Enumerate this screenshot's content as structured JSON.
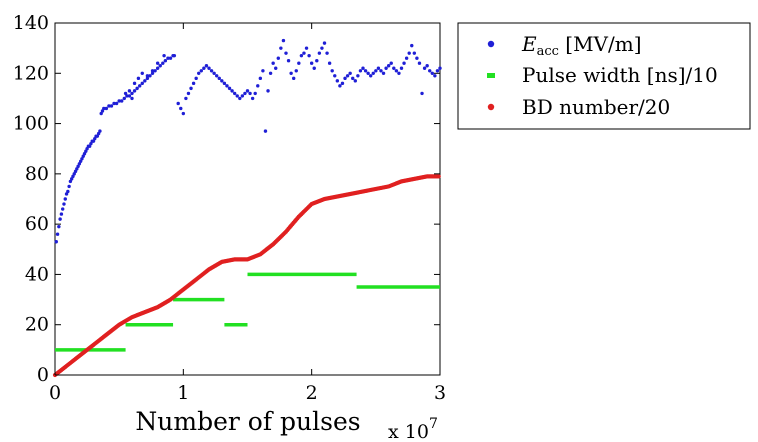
{
  "chart_data": {
    "type": "scatter",
    "xlabel": "Number of pulses",
    "x_exponent_label": "x 10",
    "x_exponent_power": "7",
    "xlim": [
      0,
      3
    ],
    "ylim": [
      0,
      140
    ],
    "x_ticks": [
      0,
      1,
      2,
      3
    ],
    "y_ticks": [
      0,
      20,
      40,
      60,
      80,
      100,
      120,
      140
    ],
    "grid": false,
    "legend_position": "top-right-outside",
    "series": [
      {
        "name": "E",
        "name_subscript": "acc",
        "name_suffix": " [MV/m]",
        "color": "#1f1fd6",
        "points": [
          [
            0.01,
            53
          ],
          [
            0.02,
            56
          ],
          [
            0.03,
            59
          ],
          [
            0.04,
            62
          ],
          [
            0.05,
            64
          ],
          [
            0.06,
            66
          ],
          [
            0.07,
            68
          ],
          [
            0.08,
            70
          ],
          [
            0.09,
            72
          ],
          [
            0.1,
            73
          ],
          [
            0.11,
            75
          ],
          [
            0.12,
            77
          ],
          [
            0.13,
            78
          ],
          [
            0.14,
            79
          ],
          [
            0.15,
            80
          ],
          [
            0.16,
            81
          ],
          [
            0.17,
            82
          ],
          [
            0.18,
            83
          ],
          [
            0.19,
            84
          ],
          [
            0.2,
            85
          ],
          [
            0.21,
            86
          ],
          [
            0.22,
            87
          ],
          [
            0.23,
            88
          ],
          [
            0.24,
            89
          ],
          [
            0.25,
            90
          ],
          [
            0.26,
            91
          ],
          [
            0.27,
            91
          ],
          [
            0.28,
            92
          ],
          [
            0.29,
            93
          ],
          [
            0.3,
            93
          ],
          [
            0.31,
            94
          ],
          [
            0.32,
            95
          ],
          [
            0.33,
            95
          ],
          [
            0.34,
            96
          ],
          [
            0.35,
            97
          ],
          [
            0.36,
            104
          ],
          [
            0.37,
            105
          ],
          [
            0.38,
            106
          ],
          [
            0.4,
            106
          ],
          [
            0.42,
            107
          ],
          [
            0.44,
            107
          ],
          [
            0.46,
            108
          ],
          [
            0.48,
            108
          ],
          [
            0.5,
            109
          ],
          [
            0.52,
            109
          ],
          [
            0.54,
            110
          ],
          [
            0.56,
            111
          ],
          [
            0.58,
            111
          ],
          [
            0.6,
            112
          ],
          [
            0.62,
            113
          ],
          [
            0.64,
            114
          ],
          [
            0.66,
            115
          ],
          [
            0.68,
            116
          ],
          [
            0.7,
            117
          ],
          [
            0.72,
            118
          ],
          [
            0.74,
            119
          ],
          [
            0.76,
            120
          ],
          [
            0.78,
            121
          ],
          [
            0.8,
            122
          ],
          [
            0.82,
            123
          ],
          [
            0.84,
            124
          ],
          [
            0.86,
            125
          ],
          [
            0.88,
            126
          ],
          [
            0.9,
            126
          ],
          [
            0.92,
            127
          ],
          [
            0.93,
            127
          ],
          [
            0.55,
            112
          ],
          [
            0.58,
            113
          ],
          [
            0.62,
            116
          ],
          [
            0.65,
            118
          ],
          [
            0.68,
            120
          ],
          [
            0.72,
            119
          ],
          [
            0.76,
            121
          ],
          [
            0.8,
            124
          ],
          [
            0.85,
            127
          ],
          [
            0.6,
            110
          ],
          [
            0.96,
            108
          ],
          [
            0.98,
            106
          ],
          [
            1.0,
            104
          ],
          [
            1.02,
            110
          ],
          [
            1.04,
            112
          ],
          [
            1.06,
            114
          ],
          [
            1.08,
            116
          ],
          [
            1.1,
            118
          ],
          [
            1.12,
            120
          ],
          [
            1.14,
            121
          ],
          [
            1.16,
            122
          ],
          [
            1.18,
            123
          ],
          [
            1.2,
            122
          ],
          [
            1.22,
            121
          ],
          [
            1.24,
            120
          ],
          [
            1.26,
            119
          ],
          [
            1.28,
            118
          ],
          [
            1.3,
            117
          ],
          [
            1.32,
            116
          ],
          [
            1.34,
            115
          ],
          [
            1.36,
            114
          ],
          [
            1.38,
            113
          ],
          [
            1.4,
            112
          ],
          [
            1.42,
            111
          ],
          [
            1.44,
            110
          ],
          [
            1.46,
            111
          ],
          [
            1.48,
            112
          ],
          [
            1.5,
            113
          ],
          [
            1.52,
            112
          ],
          [
            1.54,
            110
          ],
          [
            1.56,
            112
          ],
          [
            1.58,
            115
          ],
          [
            1.6,
            118
          ],
          [
            1.62,
            121
          ],
          [
            1.64,
            97
          ],
          [
            1.66,
            113
          ],
          [
            1.68,
            120
          ],
          [
            1.7,
            124
          ],
          [
            1.72,
            122
          ],
          [
            1.74,
            126
          ],
          [
            1.76,
            130
          ],
          [
            1.78,
            133
          ],
          [
            1.8,
            128
          ],
          [
            1.82,
            125
          ],
          [
            1.84,
            120
          ],
          [
            1.86,
            118
          ],
          [
            1.88,
            121
          ],
          [
            1.9,
            124
          ],
          [
            1.92,
            127
          ],
          [
            1.94,
            128
          ],
          [
            1.96,
            130
          ],
          [
            1.98,
            127
          ],
          [
            2.0,
            124
          ],
          [
            2.02,
            122
          ],
          [
            2.04,
            125
          ],
          [
            2.06,
            128
          ],
          [
            2.08,
            130
          ],
          [
            2.1,
            132
          ],
          [
            2.12,
            128
          ],
          [
            2.14,
            124
          ],
          [
            2.16,
            121
          ],
          [
            2.18,
            119
          ],
          [
            2.2,
            117
          ],
          [
            2.22,
            115
          ],
          [
            2.24,
            116
          ],
          [
            2.26,
            118
          ],
          [
            2.28,
            119
          ],
          [
            2.3,
            120
          ],
          [
            2.32,
            118
          ],
          [
            2.34,
            117
          ],
          [
            2.36,
            119
          ],
          [
            2.38,
            121
          ],
          [
            2.4,
            122
          ],
          [
            2.42,
            121
          ],
          [
            2.44,
            120
          ],
          [
            2.46,
            119
          ],
          [
            2.48,
            120
          ],
          [
            2.5,
            121
          ],
          [
            2.52,
            122
          ],
          [
            2.54,
            121
          ],
          [
            2.56,
            120
          ],
          [
            2.58,
            122
          ],
          [
            2.6,
            123
          ],
          [
            2.62,
            124
          ],
          [
            2.64,
            122
          ],
          [
            2.66,
            121
          ],
          [
            2.68,
            120
          ],
          [
            2.7,
            122
          ],
          [
            2.72,
            124
          ],
          [
            2.74,
            126
          ],
          [
            2.76,
            128
          ],
          [
            2.78,
            131
          ],
          [
            2.8,
            128
          ],
          [
            2.82,
            126
          ],
          [
            2.84,
            124
          ],
          [
            2.86,
            112
          ],
          [
            2.88,
            122
          ],
          [
            2.9,
            123
          ],
          [
            2.92,
            121
          ],
          [
            2.94,
            120
          ],
          [
            2.96,
            119
          ],
          [
            2.98,
            121
          ],
          [
            3.0,
            122
          ]
        ]
      },
      {
        "name": "Pulse width [ns]/10",
        "color": "#22e022",
        "segments": [
          [
            0.0,
            0.55,
            10
          ],
          [
            0.55,
            0.92,
            20
          ],
          [
            0.92,
            1.32,
            30
          ],
          [
            1.32,
            1.5,
            20
          ],
          [
            1.5,
            2.35,
            40
          ],
          [
            2.35,
            3.0,
            35
          ]
        ]
      },
      {
        "name": "BD number/20",
        "color": "#e02020",
        "curve": [
          [
            0.0,
            0
          ],
          [
            0.1,
            4
          ],
          [
            0.2,
            8
          ],
          [
            0.3,
            12
          ],
          [
            0.4,
            16
          ],
          [
            0.5,
            20
          ],
          [
            0.6,
            23
          ],
          [
            0.7,
            25
          ],
          [
            0.8,
            27
          ],
          [
            0.9,
            30
          ],
          [
            1.0,
            34
          ],
          [
            1.1,
            38
          ],
          [
            1.2,
            42
          ],
          [
            1.3,
            45
          ],
          [
            1.4,
            46
          ],
          [
            1.5,
            46
          ],
          [
            1.6,
            48
          ],
          [
            1.7,
            52
          ],
          [
            1.8,
            57
          ],
          [
            1.9,
            63
          ],
          [
            2.0,
            68
          ],
          [
            2.1,
            70
          ],
          [
            2.2,
            71
          ],
          [
            2.3,
            72
          ],
          [
            2.4,
            73
          ],
          [
            2.5,
            74
          ],
          [
            2.6,
            75
          ],
          [
            2.7,
            77
          ],
          [
            2.8,
            78
          ],
          [
            2.9,
            79
          ],
          [
            3.0,
            79
          ]
        ]
      }
    ]
  }
}
